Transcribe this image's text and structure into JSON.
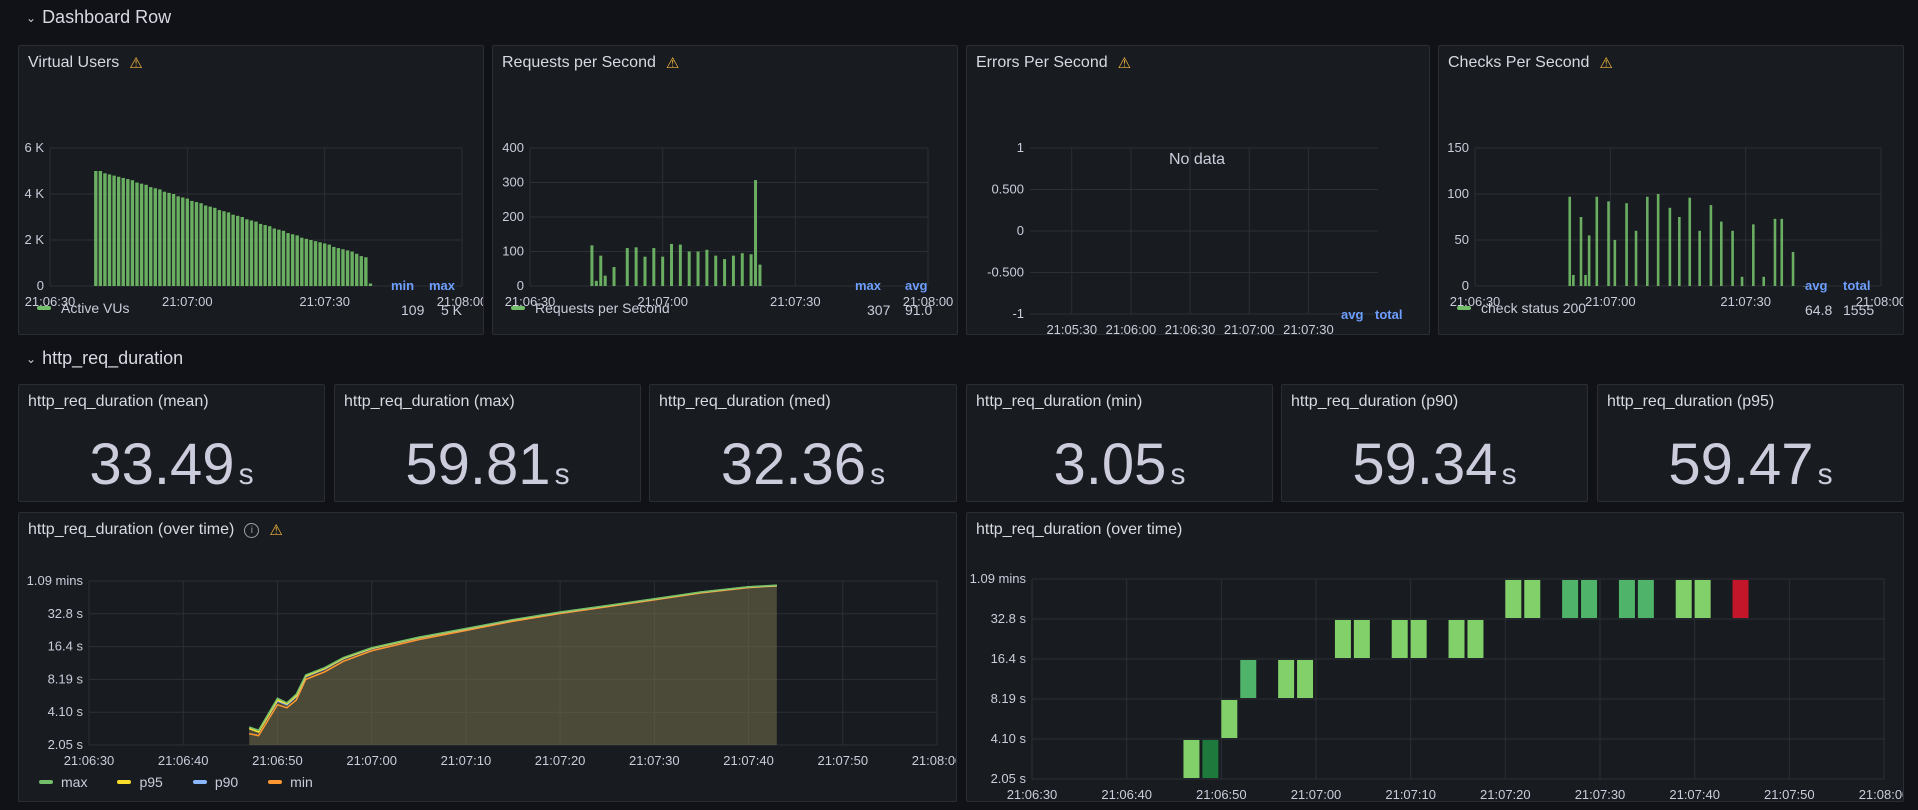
{
  "rows": [
    {
      "title": "Dashboard Row"
    },
    {
      "title": "http_req_duration"
    }
  ],
  "panels": {
    "vus": {
      "title": "Virtual Users",
      "y_ticks": [
        "6 K",
        "4 K",
        "2 K",
        "0"
      ],
      "x_ticks": [
        "21:06:30",
        "21:07:00",
        "21:07:30",
        "21:08:00"
      ],
      "legend_headers": [
        "min",
        "max"
      ],
      "legend": {
        "name": "Active VUs",
        "min": "109",
        "max": "5 K"
      }
    },
    "rps": {
      "title": "Requests per Second",
      "y_ticks": [
        "400",
        "300",
        "200",
        "100",
        "0"
      ],
      "x_ticks": [
        "21:06:30",
        "21:07:00",
        "21:07:30",
        "21:08:00"
      ],
      "legend_headers": [
        "max",
        "avg"
      ],
      "legend": {
        "name": "Requests per Second",
        "max": "307",
        "avg": "91.0"
      }
    },
    "eps": {
      "title": "Errors Per Second",
      "y_ticks": [
        "1",
        "0.500",
        "0",
        "-0.500",
        "-1"
      ],
      "x_ticks": [
        "21:05:30",
        "21:06:00",
        "21:06:30",
        "21:07:00",
        "21:07:30"
      ],
      "no_data": "No data",
      "legend_headers": [
        "avg",
        "total"
      ]
    },
    "checks": {
      "title": "Checks Per Second",
      "y_ticks": [
        "150",
        "100",
        "50",
        "0"
      ],
      "x_ticks": [
        "21:06:30",
        "21:07:00",
        "21:07:30",
        "21:08:00"
      ],
      "legend_headers": [
        "avg",
        "total"
      ],
      "legend": {
        "name": "check status 200",
        "avg": "64.8",
        "total": "1555"
      }
    },
    "stats": [
      {
        "title": "http_req_duration (mean)",
        "value": "33.49",
        "unit": "s"
      },
      {
        "title": "http_req_duration (max)",
        "value": "59.81",
        "unit": "s"
      },
      {
        "title": "http_req_duration (med)",
        "value": "32.36",
        "unit": "s"
      },
      {
        "title": "http_req_duration (min)",
        "value": "3.05",
        "unit": "s"
      },
      {
        "title": "http_req_duration (p90)",
        "value": "59.34",
        "unit": "s"
      },
      {
        "title": "http_req_duration (p95)",
        "value": "59.47",
        "unit": "s"
      }
    ],
    "overtime": {
      "title": "http_req_duration (over time)",
      "y_ticks": [
        "1.09 mins",
        "32.8 s",
        "16.4 s",
        "8.19 s",
        "4.10 s",
        "2.05 s"
      ],
      "x_ticks": [
        "21:06:30",
        "21:06:40",
        "21:06:50",
        "21:07:00",
        "21:07:10",
        "21:07:20",
        "21:07:30",
        "21:07:40",
        "21:07:50",
        "21:08:00"
      ],
      "legend": [
        {
          "name": "max",
          "color": "#73bf69"
        },
        {
          "name": "p95",
          "color": "#fade2a"
        },
        {
          "name": "p90",
          "color": "#8ab8ff"
        },
        {
          "name": "min",
          "color": "#ff9830"
        }
      ]
    },
    "heatmap": {
      "title": "http_req_duration (over time)",
      "y_ticks": [
        "1.09 mins",
        "32.8 s",
        "16.4 s",
        "8.19 s",
        "4.10 s",
        "2.05 s"
      ],
      "x_ticks": [
        "21:06:30",
        "21:06:40",
        "21:06:50",
        "21:07:00",
        "21:07:10",
        "21:07:20",
        "21:07:30",
        "21:07:40",
        "21:07:50",
        "21:08:00"
      ]
    }
  },
  "chart_data": [
    {
      "type": "bar",
      "title": "Virtual Users",
      "series": [
        {
          "name": "Active VUs",
          "color": "#73bf69",
          "x_seconds": [
            10,
            11,
            12,
            13,
            14,
            15,
            16,
            17,
            18,
            19,
            20,
            21,
            22,
            23,
            24,
            25,
            26,
            27,
            28,
            29,
            30,
            31,
            32,
            33,
            34,
            35,
            36,
            37,
            38,
            39,
            40,
            41,
            42,
            43,
            44,
            45,
            46,
            47,
            48,
            49,
            50,
            51,
            52,
            53,
            54,
            55,
            56,
            57,
            58,
            59,
            60,
            61,
            62,
            63,
            64,
            65,
            66,
            67,
            68,
            69,
            70
          ],
          "values": [
            5000,
            5000,
            4900,
            4850,
            4800,
            4750,
            4700,
            4650,
            4600,
            4500,
            4450,
            4400,
            4300,
            4250,
            4200,
            4100,
            4050,
            4000,
            3900,
            3850,
            3800,
            3700,
            3650,
            3600,
            3500,
            3450,
            3400,
            3300,
            3250,
            3200,
            3100,
            3050,
            3000,
            2900,
            2850,
            2800,
            2700,
            2650,
            2600,
            2500,
            2450,
            2400,
            2300,
            2250,
            2200,
            2100,
            2050,
            2000,
            1950,
            1900,
            1850,
            1800,
            1700,
            1650,
            1600,
            1550,
            1500,
            1400,
            1300,
            1250,
            109
          ]
        }
      ],
      "x_range_seconds": [
        0,
        90
      ],
      "ylim": [
        0,
        6000
      ]
    },
    {
      "type": "bar",
      "title": "Requests per Second",
      "series": [
        {
          "name": "Requests per Second",
          "color": "#73bf69",
          "x_seconds": [
            14,
            15,
            16,
            17,
            19,
            22,
            24,
            26,
            28,
            30,
            32,
            34,
            36,
            38,
            40,
            42,
            44,
            46,
            48,
            50,
            51,
            52
          ],
          "values": [
            118,
            15,
            88,
            30,
            55,
            110,
            112,
            85,
            110,
            85,
            122,
            120,
            100,
            100,
            105,
            88,
            78,
            88,
            95,
            92,
            307,
            62
          ]
        }
      ],
      "x_range_seconds": [
        0,
        90
      ],
      "ylim": [
        0,
        400
      ]
    },
    {
      "type": "line",
      "title": "Errors Per Second",
      "series": [],
      "ylim": [
        -1,
        1
      ]
    },
    {
      "type": "bar",
      "title": "Checks Per Second",
      "series": [
        {
          "name": "check status 200",
          "color": "#73bf69",
          "x_seconds": [
            21,
            21.8,
            23.5,
            24.5,
            25.3,
            27,
            29.6,
            31,
            33.6,
            35.7,
            38.2,
            40.6,
            43.2,
            45.3,
            47.6,
            49.8,
            52.3,
            54.6,
            57.1,
            59.2,
            61.7,
            64,
            66.5,
            68,
            70.5,
            73
          ],
          "values": [
            97,
            12,
            75,
            12,
            55,
            97,
            92,
            50,
            90,
            60,
            97,
            100,
            85,
            75,
            96,
            60,
            88,
            70,
            60,
            10,
            67,
            10,
            73,
            73,
            37,
            0
          ]
        }
      ],
      "x_range_seconds": [
        0,
        90
      ],
      "ylim": [
        0,
        150
      ]
    },
    {
      "type": "area",
      "title": "http_req_duration (over time)",
      "x_range_seconds": [
        0,
        90
      ],
      "y_scale": "log",
      "series": [
        {
          "name": "max",
          "x_seconds": [
            17,
            18,
            20,
            21,
            22,
            23,
            25,
            27,
            30,
            35,
            40,
            45,
            50,
            55,
            60,
            65,
            70,
            73
          ],
          "values": [
            3.0,
            2.8,
            5.5,
            5.0,
            6.0,
            9.0,
            10.5,
            13.0,
            16.0,
            20.0,
            24.0,
            29.0,
            34.0,
            39.0,
            45.0,
            52.0,
            58.0,
            60.0
          ]
        },
        {
          "name": "p95",
          "x_seconds": [
            17,
            18,
            20,
            21,
            22,
            23,
            25,
            27,
            30,
            35,
            40,
            45,
            50,
            55,
            60,
            65,
            70,
            73
          ],
          "values": [
            2.9,
            2.7,
            5.3,
            4.9,
            5.8,
            8.8,
            10.3,
            12.8,
            15.8,
            19.8,
            23.8,
            28.8,
            33.8,
            38.8,
            44.8,
            51.8,
            57.8,
            59.5
          ]
        },
        {
          "name": "p90",
          "x_seconds": [
            17,
            18,
            20,
            21,
            22,
            23,
            25,
            27,
            30,
            35,
            40,
            45,
            50,
            55,
            60,
            65,
            70,
            73
          ],
          "values": [
            2.9,
            2.7,
            5.2,
            4.8,
            5.7,
            8.7,
            10.2,
            12.7,
            15.7,
            19.7,
            23.7,
            28.7,
            33.7,
            38.7,
            44.7,
            51.7,
            57.7,
            59.3
          ]
        },
        {
          "name": "min",
          "x_seconds": [
            17,
            18,
            20,
            21,
            22,
            23,
            25,
            27,
            30,
            35,
            40,
            45,
            50,
            55,
            60,
            65,
            70,
            73
          ],
          "values": [
            2.6,
            2.5,
            4.8,
            4.5,
            5.3,
            8.2,
            9.6,
            12.0,
            15.0,
            19.0,
            23.0,
            28.0,
            33.0,
            38.0,
            44.0,
            51.0,
            57.0,
            59.0
          ]
        }
      ]
    },
    {
      "type": "heatmap",
      "title": "http_req_duration (over time)",
      "x_range_seconds": [
        0,
        90
      ],
      "y_buckets": [
        "2.05 s",
        "4.10 s",
        "8.19 s",
        "16.4 s",
        "32.8 s",
        "1.09 mins"
      ],
      "cells": [
        {
          "x_seconds": 16,
          "bucket": 0,
          "intensity": "light"
        },
        {
          "x_seconds": 18,
          "bucket": 0,
          "intensity": "dark"
        },
        {
          "x_seconds": 20,
          "bucket": 1,
          "intensity": "light"
        },
        {
          "x_seconds": 22,
          "bucket": 2,
          "intensity": "mid"
        },
        {
          "x_seconds": 26,
          "bucket": 2,
          "intensity": "light"
        },
        {
          "x_seconds": 28,
          "bucket": 2,
          "intensity": "light"
        },
        {
          "x_seconds": 32,
          "bucket": 3,
          "intensity": "light"
        },
        {
          "x_seconds": 34,
          "bucket": 3,
          "intensity": "light"
        },
        {
          "x_seconds": 38,
          "bucket": 3,
          "intensity": "light"
        },
        {
          "x_seconds": 40,
          "bucket": 3,
          "intensity": "light"
        },
        {
          "x_seconds": 44,
          "bucket": 3,
          "intensity": "light"
        },
        {
          "x_seconds": 46,
          "bucket": 3,
          "intensity": "light"
        },
        {
          "x_seconds": 50,
          "bucket": 4,
          "intensity": "light"
        },
        {
          "x_seconds": 52,
          "bucket": 4,
          "intensity": "light"
        },
        {
          "x_seconds": 56,
          "bucket": 4,
          "intensity": "mid"
        },
        {
          "x_seconds": 58,
          "bucket": 4,
          "intensity": "mid"
        },
        {
          "x_seconds": 62,
          "bucket": 4,
          "intensity": "mid"
        },
        {
          "x_seconds": 64,
          "bucket": 4,
          "intensity": "mid"
        },
        {
          "x_seconds": 68,
          "bucket": 4,
          "intensity": "light"
        },
        {
          "x_seconds": 70,
          "bucket": 4,
          "intensity": "light"
        },
        {
          "x_seconds": 74,
          "bucket": 4,
          "intensity": "red"
        }
      ]
    }
  ]
}
